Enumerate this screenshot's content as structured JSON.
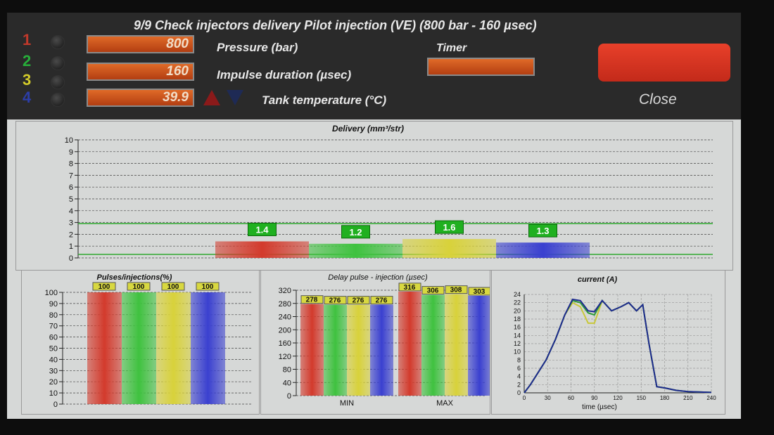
{
  "title": "9/9 Check  injectors delivery Pilot injection (VE) (800 bar - 160 µsec)",
  "injector_numbers": [
    {
      "label": "1",
      "color": "#c0392b"
    },
    {
      "label": "2",
      "color": "#27ae3a"
    },
    {
      "label": "3",
      "color": "#d4cc2a"
    },
    {
      "label": "4",
      "color": "#2c3ea8"
    }
  ],
  "params": {
    "pressure_value": "800",
    "pressure_label": "Pressure (bar)",
    "impulse_value": "160",
    "impulse_label": "Impulse duration (µsec)",
    "tank_value": "39.9",
    "tank_label": "Tank temperature (°C)"
  },
  "timer_label": "Timer",
  "close_label": "Close",
  "icons": {
    "up": "arrow-up-icon",
    "down": "arrow-down-icon"
  },
  "colors": {
    "red": "#d33a2c",
    "green": "#3fc23f",
    "yellow": "#d8d23a",
    "blue": "#3a40d0",
    "badge_green": "#20b020",
    "badge_yellow": "#d8d840"
  },
  "chart_data": [
    {
      "type": "bar",
      "title": "Delivery (mm³/str)",
      "ylim": [
        0,
        10
      ],
      "yticks": [
        "0",
        "1",
        "2",
        "3",
        "4",
        "5",
        "6",
        "7",
        "8",
        "9",
        "10"
      ],
      "values": [
        1.4,
        1.2,
        1.6,
        1.3
      ],
      "labels": [
        "1.4",
        "1.2",
        "1.6",
        "1.3"
      ],
      "tolerance_lines": [
        0.3,
        2.9
      ],
      "grid": true
    },
    {
      "type": "bar",
      "title": "Pulses/injections(%)",
      "ylim": [
        0,
        100
      ],
      "yticks": [
        "0",
        "10",
        "20",
        "30",
        "40",
        "50",
        "60",
        "70",
        "80",
        "90",
        "100"
      ],
      "values": [
        100,
        100,
        100,
        100
      ],
      "labels": [
        "100",
        "100",
        "100",
        "100"
      ],
      "grid": true
    },
    {
      "type": "bar",
      "title": "Delay pulse - injection (µsec)",
      "ylim": [
        0,
        320
      ],
      "yticks": [
        "0",
        "40",
        "80",
        "120",
        "160",
        "200",
        "240",
        "280",
        "320"
      ],
      "categories": [
        "MIN",
        "MAX"
      ],
      "series": [
        {
          "values": [
            278,
            316
          ]
        },
        {
          "values": [
            276,
            306
          ]
        },
        {
          "values": [
            276,
            308
          ]
        },
        {
          "values": [
            276,
            303
          ]
        }
      ],
      "labels": [
        [
          "278",
          "276",
          "276",
          "276"
        ],
        [
          "316",
          "306",
          "308",
          "303"
        ]
      ],
      "grid": true
    },
    {
      "type": "line",
      "title": "current (A)",
      "xlabel": "time (µsec)",
      "xlim": [
        0,
        240
      ],
      "ylim": [
        0,
        24
      ],
      "xticks": [
        "0",
        "30",
        "60",
        "90",
        "120",
        "150",
        "180",
        "210",
        "240"
      ],
      "yticks": [
        "0",
        "2",
        "4",
        "6",
        "8",
        "10",
        "12",
        "14",
        "16",
        "18",
        "20",
        "22",
        "24"
      ],
      "series": [
        {
          "color": "#c8c83a",
          "x": [
            0,
            8,
            18,
            28,
            40,
            52,
            62,
            72,
            82,
            90,
            100,
            112,
            124,
            134,
            144,
            152,
            160,
            170,
            180,
            195,
            210,
            240
          ],
          "y": [
            0,
            2,
            5,
            8,
            13,
            19,
            22,
            21,
            17,
            17,
            22.5,
            20,
            21,
            22,
            20,
            21.5,
            12,
            1.5,
            1.2,
            0.6,
            0.3,
            0.1
          ]
        },
        {
          "color": "#2e9a3a",
          "x": [
            0,
            8,
            18,
            28,
            40,
            52,
            62,
            72,
            82,
            90,
            100,
            112,
            124,
            134,
            144,
            152,
            160,
            170,
            180,
            195,
            210,
            240
          ],
          "y": [
            0,
            2,
            5,
            8,
            13,
            19,
            22.5,
            22,
            19.5,
            19,
            22.5,
            20,
            21,
            22,
            20,
            21.5,
            12,
            1.5,
            1.2,
            0.6,
            0.3,
            0.1
          ]
        },
        {
          "color": "#1e2a90",
          "x": [
            0,
            8,
            18,
            28,
            40,
            52,
            62,
            72,
            82,
            90,
            100,
            112,
            124,
            134,
            144,
            152,
            160,
            170,
            180,
            195,
            210,
            240
          ],
          "y": [
            0,
            2,
            5,
            8,
            13,
            19,
            22.8,
            22.5,
            20,
            19.8,
            22.5,
            20,
            21,
            22,
            20,
            21.5,
            12,
            1.5,
            1.2,
            0.6,
            0.3,
            0.1
          ]
        }
      ],
      "grid": true
    }
  ]
}
